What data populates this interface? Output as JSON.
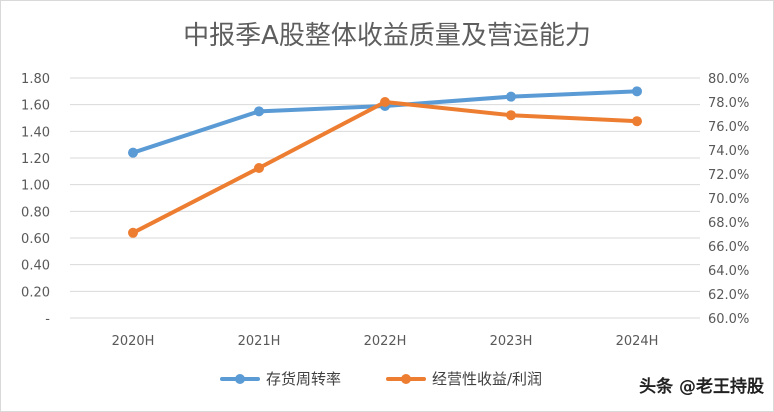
{
  "chart_data": {
    "type": "line",
    "title": "中报季A股整体收益质量及营运能力",
    "categories": [
      "2020H",
      "2021H",
      "2022H",
      "2023H",
      "2024H"
    ],
    "y_left": {
      "ticks": [
        "-",
        "0.20",
        "0.40",
        "0.60",
        "0.80",
        "1.00",
        "1.20",
        "1.40",
        "1.60",
        "1.80"
      ],
      "ylim": [
        0,
        1.8
      ]
    },
    "y_right": {
      "ticks": [
        "60.0%",
        "62.0%",
        "64.0%",
        "66.0%",
        "68.0%",
        "70.0%",
        "72.0%",
        "74.0%",
        "76.0%",
        "78.0%",
        "80.0%"
      ],
      "ylim": [
        60,
        80
      ]
    },
    "series": [
      {
        "name": "存货周转率",
        "axis": "left",
        "color": "#5b9bd5",
        "values": [
          1.24,
          1.55,
          1.59,
          1.66,
          1.7
        ]
      },
      {
        "name": "经营性收益/利润",
        "axis": "right",
        "color": "#ed7d31",
        "values": [
          67.1,
          72.5,
          78.0,
          76.9,
          76.4
        ]
      }
    ],
    "legend_position": "bottom",
    "grid": true
  },
  "watermark": "头条 @老王持股"
}
